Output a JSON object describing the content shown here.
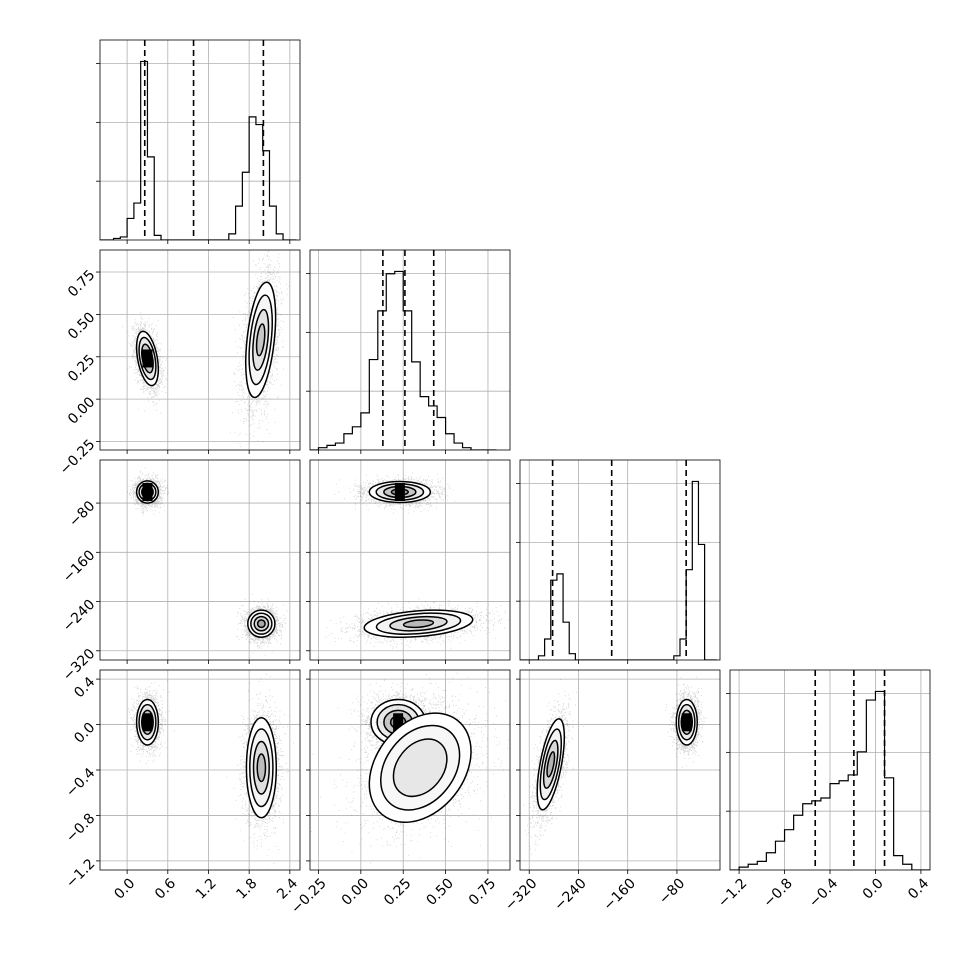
{
  "chart_data": {
    "type": "corner",
    "title": "",
    "parameters": [
      "",
      "",
      "",
      ""
    ],
    "grid": true,
    "colors": {
      "line": "#000000",
      "grid": "#b0b0b0",
      "points": "#000000"
    },
    "quantiles": [
      0.16,
      0.5,
      0.84
    ],
    "axes": [
      {
        "range": [
          -0.4,
          2.55
        ],
        "ticks": [
          0.0,
          0.6,
          1.2,
          1.8,
          2.4
        ],
        "tick_labels": [
          "0.0",
          "0.6",
          "1.2",
          "1.8",
          "2.4"
        ]
      },
      {
        "range": [
          -0.3,
          0.88
        ],
        "ticks": [
          -0.25,
          0.0,
          0.25,
          0.5,
          0.75
        ],
        "tick_labels": [
          "−0.25",
          "0.00",
          "0.25",
          "0.50",
          "0.75"
        ]
      },
      {
        "range": [
          -335,
          -10
        ],
        "ticks": [
          -320,
          -240,
          -160,
          -80
        ],
        "tick_labels": [
          "−320",
          "−240",
          "−160",
          "−80"
        ]
      },
      {
        "range": [
          -1.28,
          0.48
        ],
        "ticks": [
          -1.2,
          -0.8,
          -0.4,
          0.0,
          0.4
        ],
        "tick_labels": [
          "−1.2",
          "−0.8",
          "−0.4",
          "0.0",
          "0.4"
        ]
      }
    ],
    "diagonal": [
      {
        "param": 0,
        "bin_edges": [
          -0.4,
          -0.3,
          -0.2,
          -0.1,
          0.0,
          0.1,
          0.2,
          0.3,
          0.4,
          0.5,
          0.6,
          0.7,
          0.8,
          0.9,
          1.0,
          1.1,
          1.2,
          1.3,
          1.4,
          1.5,
          1.6,
          1.7,
          1.8,
          1.9,
          2.0,
          2.1,
          2.2,
          2.3,
          2.4,
          2.5
        ],
        "counts": [
          0,
          0,
          1,
          2,
          14,
          24,
          116,
          54,
          3,
          0,
          0,
          0,
          0,
          0,
          0,
          0,
          0,
          0,
          0,
          4,
          22,
          44,
          80,
          75,
          58,
          22,
          4,
          0,
          0
        ],
        "quantile_values": [
          0.26,
          0.98,
          2.01
        ]
      },
      {
        "param": 1,
        "bin_edges": [
          -0.3,
          -0.25,
          -0.2,
          -0.15,
          -0.1,
          -0.05,
          0.0,
          0.05,
          0.1,
          0.15,
          0.2,
          0.25,
          0.3,
          0.35,
          0.4,
          0.45,
          0.5,
          0.55,
          0.6,
          0.65,
          0.7,
          0.75,
          0.8
        ],
        "counts": [
          0,
          1,
          2,
          3,
          7,
          10,
          16,
          39,
          60,
          76,
          77,
          60,
          38,
          23,
          19,
          14,
          7,
          3,
          1,
          0,
          0,
          0
        ],
        "quantile_values": [
          0.13,
          0.26,
          0.43
        ]
      },
      {
        "param": 2,
        "bin_edges": [
          -335,
          -325,
          -315,
          -305,
          -295,
          -285,
          -275,
          -265,
          -255,
          -245,
          -235,
          -225,
          -215,
          -205,
          -195,
          -185,
          -175,
          -165,
          -155,
          -145,
          -135,
          -125,
          -115,
          -105,
          -95,
          -85,
          -75,
          -65,
          -55,
          -45,
          -35,
          -25,
          -15
        ],
        "counts": [
          0,
          0,
          0,
          2,
          10,
          38,
          41,
          18,
          3,
          0,
          0,
          0,
          0,
          0,
          0,
          0,
          0,
          0,
          0,
          0,
          0,
          0,
          0,
          0,
          0,
          2,
          10,
          43,
          85,
          55,
          0,
          0
        ],
        "quantile_values": [
          -282,
          -186,
          -65
        ]
      },
      {
        "param": 3,
        "bin_edges": [
          -1.28,
          -1.2,
          -1.12,
          -1.04,
          -0.96,
          -0.88,
          -0.8,
          -0.72,
          -0.64,
          -0.56,
          -0.48,
          -0.4,
          -0.32,
          -0.24,
          -0.16,
          -0.08,
          0.0,
          0.08,
          0.16,
          0.24,
          0.32,
          0.4,
          0.48
        ],
        "counts": [
          0,
          1,
          2,
          3,
          6,
          10,
          14,
          19,
          23,
          24,
          25,
          30,
          31,
          33,
          41,
          59,
          62,
          32,
          5,
          2,
          0,
          0
        ],
        "quantile_values": [
          -0.53,
          -0.19,
          0.08
        ]
      }
    ],
    "scatter_panels": [
      {
        "x_param": 0,
        "y_param": 1,
        "modes": [
          {
            "n": 2400,
            "mean": [
              0.3,
              0.24
            ],
            "sd": [
              0.08,
              0.08
            ],
            "rho": -0.4,
            "peak": 1.0,
            "levels": 3
          },
          {
            "n": 2600,
            "mean": [
              1.97,
              0.35
            ],
            "sd": [
              0.11,
              0.17
            ],
            "rho": 0.4,
            "peak": 0.4,
            "levels": 3
          }
        ]
      },
      {
        "x_param": 0,
        "y_param": 2,
        "modes": [
          {
            "n": 2400,
            "mean": [
              0.3,
              -62
            ],
            "sd": [
              0.08,
              9.0
            ],
            "rho": 0.0,
            "peak": 1.0,
            "levels": 3
          },
          {
            "n": 2600,
            "mean": [
              1.98,
              -276
            ],
            "sd": [
              0.1,
              11.0
            ],
            "rho": 0.0,
            "peak": 0.75,
            "levels": 3
          }
        ]
      },
      {
        "x_param": 1,
        "y_param": 2,
        "modes": [
          {
            "n": 2500,
            "mean": [
              0.23,
              -62
            ],
            "sd": [
              0.09,
              8.5
            ],
            "rho": 0.0,
            "peak": 1.0,
            "levels": 3
          },
          {
            "n": 2500,
            "mean": [
              0.34,
              -276
            ],
            "sd": [
              0.16,
              11.0
            ],
            "rho": 0.3,
            "peak": 0.55,
            "levels": 3
          }
        ]
      },
      {
        "x_param": 0,
        "y_param": 3,
        "modes": [
          {
            "n": 2400,
            "mean": [
              0.3,
              0.02
            ],
            "sd": [
              0.08,
              0.1
            ],
            "rho": 0.0,
            "peak": 1.0,
            "levels": 3
          },
          {
            "n": 2600,
            "mean": [
              1.98,
              -0.38
            ],
            "sd": [
              0.11,
              0.22
            ],
            "rho": 0.0,
            "peak": 0.5,
            "levels": 3
          }
        ]
      },
      {
        "x_param": 1,
        "y_param": 3,
        "modes": [
          {
            "n": 2500,
            "mean": [
              0.22,
              0.02
            ],
            "sd": [
              0.08,
              0.1
            ],
            "rho": 0.0,
            "peak": 1.0,
            "levels": 3
          },
          {
            "n": 2500,
            "mean": [
              0.35,
              -0.38
            ],
            "sd": [
              0.15,
              0.24
            ],
            "rho": 0.3,
            "peak": 0.35,
            "levels": 2
          }
        ]
      },
      {
        "x_param": 2,
        "y_param": 3,
        "modes": [
          {
            "n": 2500,
            "mean": [
              -285,
              -0.35
            ],
            "sd": [
              11.0,
              0.2
            ],
            "rho": 0.6,
            "peak": 0.6,
            "levels": 3
          },
          {
            "n": 2500,
            "mean": [
              -64,
              0.02
            ],
            "sd": [
              8.5,
              0.1
            ],
            "rho": 0.0,
            "peak": 1.0,
            "levels": 3
          }
        ]
      }
    ]
  }
}
